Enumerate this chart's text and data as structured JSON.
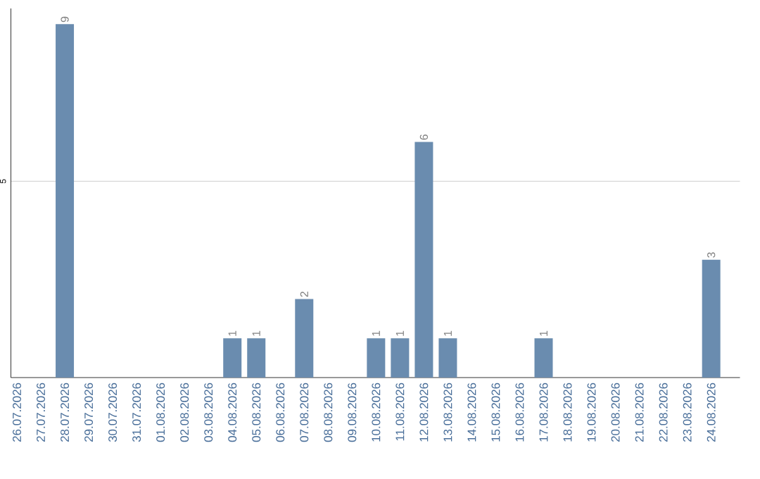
{
  "chart_data": {
    "type": "bar",
    "categories": [
      "26.07.2026",
      "27.07.2026",
      "28.07.2026",
      "29.07.2026",
      "30.07.2026",
      "31.07.2026",
      "01.08.2026",
      "02.08.2026",
      "03.08.2026",
      "04.08.2026",
      "05.08.2026",
      "06.08.2026",
      "07.08.2026",
      "08.08.2026",
      "09.08.2026",
      "10.08.2026",
      "11.08.2026",
      "12.08.2026",
      "13.08.2026",
      "14.08.2026",
      "15.08.2026",
      "16.08.2026",
      "17.08.2026",
      "18.08.2026",
      "19.08.2026",
      "20.08.2026",
      "21.08.2026",
      "22.08.2026",
      "23.08.2026",
      "24.08.2026"
    ],
    "values": [
      0,
      0,
      9,
      0,
      0,
      0,
      0,
      0,
      0,
      1,
      1,
      0,
      2,
      0,
      0,
      1,
      1,
      6,
      1,
      0,
      0,
      0,
      1,
      0,
      0,
      0,
      0,
      0,
      0,
      3
    ],
    "value_labels": [
      null,
      null,
      "9",
      null,
      null,
      null,
      null,
      null,
      null,
      "1",
      "1",
      null,
      "2",
      null,
      null,
      "1",
      "1",
      "6",
      "1",
      null,
      null,
      null,
      "1",
      null,
      null,
      null,
      null,
      null,
      null,
      "3"
    ],
    "color": "#6a8caf",
    "ylim": [
      0,
      9.4
    ],
    "yticks": [
      5
    ],
    "grid": "y"
  }
}
